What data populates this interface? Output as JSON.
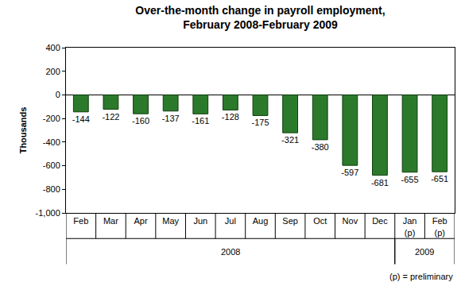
{
  "chart_data": {
    "type": "bar",
    "title": "Over-the-month change in payroll employment,\nFebruary 2008-February 2009",
    "y_label": "Thousands",
    "categories": [
      "Feb",
      "Mar",
      "Apr",
      "May",
      "Jun",
      "Jul",
      "Aug",
      "Sep",
      "Oct",
      "Nov",
      "Dec",
      "Jan (p)",
      "Feb (p)"
    ],
    "values": [
      -144,
      -122,
      -160,
      -137,
      -161,
      -128,
      -175,
      -321,
      -380,
      -597,
      -681,
      -655,
      -651
    ],
    "color": "#2b7a2b",
    "ylim": [
      -1000,
      400
    ],
    "yticks": [
      {
        "value": -1000,
        "label": "-1,000"
      },
      -800,
      -600,
      -400,
      -200,
      0,
      200,
      400
    ],
    "grid": false,
    "data_labels": true,
    "x_groups": [
      {
        "label": "2008",
        "categories": [
          "Feb",
          "Mar",
          "Apr",
          "May",
          "Jun",
          "Jul",
          "Aug",
          "Sep",
          "Oct",
          "Nov",
          "Dec"
        ]
      },
      {
        "label": "2009",
        "categories": [
          "Jan (p)",
          "Feb (p)"
        ]
      }
    ],
    "note": "(p) = preliminary"
  }
}
